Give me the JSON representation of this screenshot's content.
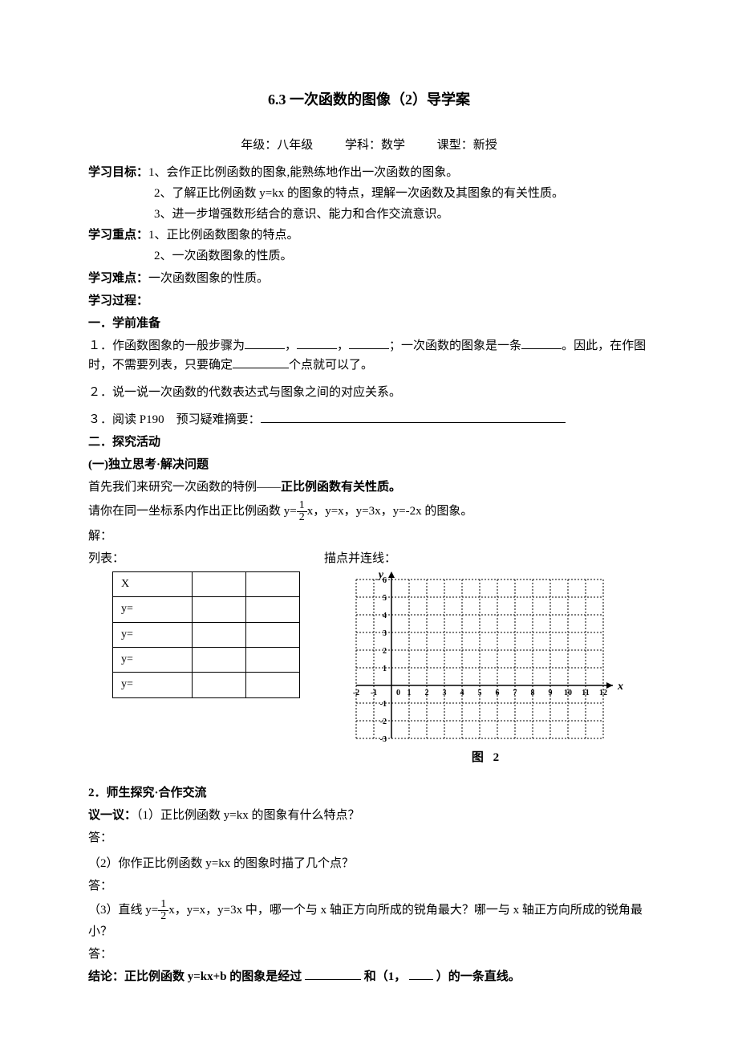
{
  "title": "6.3 一次函数的图像（2）导学案",
  "meta": {
    "grade_label": "年级：",
    "grade_value": "八年级",
    "subject_label": "学科：",
    "subject_value": "数学",
    "type_label": "课型：",
    "type_value": "新授"
  },
  "goals": {
    "label": "学习目标：",
    "items": [
      "1、会作正比例函数的图象,能熟练地作出一次函数的图象。",
      "2、了解正比例函数 y=kx 的图象的特点，理解一次函数及其图象的有关性质。",
      "3、进一步增强数形结合的意识、能力和合作交流意识。"
    ]
  },
  "keypoints": {
    "label": "学习重点：",
    "items": [
      "1、正比例函数图象的特点。",
      "2、一次函数图象的性质。"
    ]
  },
  "difficulty": {
    "label": "学习难点：",
    "text": "一次函数图象的性质。"
  },
  "process_label": "学习过程：",
  "sec1": {
    "heading": "一．学前准备",
    "q1_a": "１．作函数图象的一般步骤为",
    "q1_b": "；一次函数的图象是一条",
    "q1_c": "。因此，在作图时，不需要列表，只要确定",
    "q1_d": "个点就可以了。",
    "q2": "２．说一说一次函数的代数表达式与图象之间的对应关系。",
    "q3": "３．阅读 P190　预习疑难摘要："
  },
  "sec2": {
    "heading": "二．探究活动",
    "sub1": "(一)独立思考·解决问题",
    "intro_a": "首先我们来研究一次函数的特例——",
    "intro_b": "正比例函数有关性质。",
    "task_a": "请你在同一坐标系内作出正比例函数 y=",
    "task_b": "x，y=x，y=3x，y=-2x 的图象。",
    "frac_num": "1",
    "frac_den": "2",
    "solve": "解：",
    "list_label": "列表：",
    "plot_label": "描点并连线：",
    "table": {
      "header": "X",
      "rows": [
        "y=",
        "y=",
        "y=",
        "y="
      ]
    }
  },
  "chart": {
    "xlabel": "x",
    "ylabel": "y",
    "caption": "图 2",
    "xmin": -2,
    "xmax": 12,
    "ymin": -3,
    "ymax": 6,
    "xticks": [
      -2,
      -1,
      0,
      1,
      2,
      3,
      4,
      5,
      6,
      7,
      8,
      9,
      10,
      11,
      12
    ],
    "yticks_pos": [
      1,
      2,
      3,
      4,
      5,
      6
    ],
    "yticks_neg": [
      -1,
      -2,
      -3
    ],
    "grid_color": "#000000",
    "dash": "2,2",
    "cell": 22,
    "font_size": 10
  },
  "sec3": {
    "heading": "2．师生探究·合作交流",
    "discuss_label": "议一议：",
    "q1": "（1）正比例函数 y=kx 的图象有什么特点？",
    "ans": "答：",
    "q2": "（2）你作正比例函数 y=kx 的图象时描了几个点？",
    "q3_a": "（3）直线 y=",
    "q3_b": "x，y=x，y=3x 中，哪一个与 x 轴正方向所成的锐角最大？哪一与 x 轴正方向所成的锐角最小？",
    "conclusion_a": "结论：正比例函数 y=kx+b 的图象是经过",
    "conclusion_b": "和（1，",
    "conclusion_c": "）的一条直线。"
  }
}
